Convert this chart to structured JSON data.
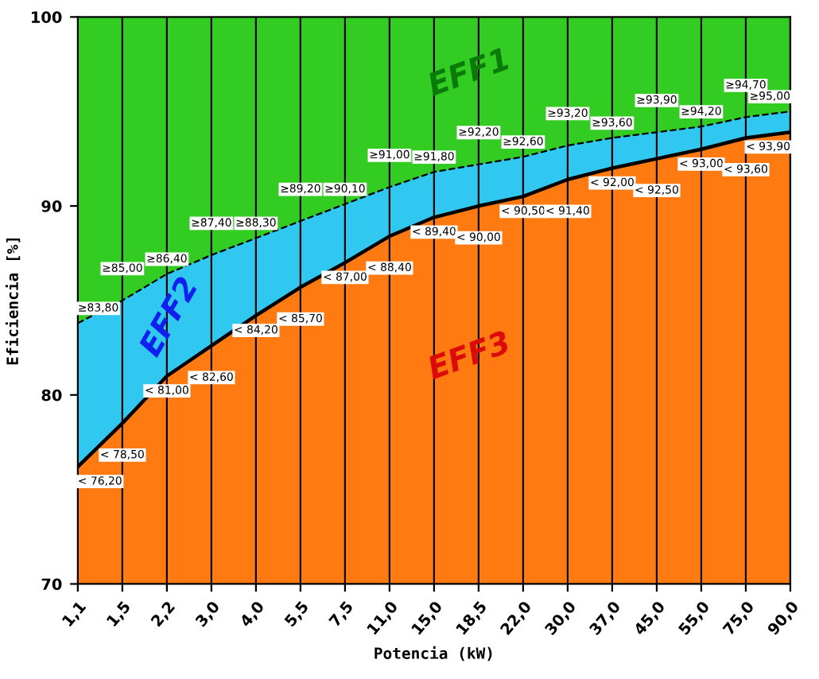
{
  "chart_data": {
    "type": "area",
    "xlabel": "Potencia (kW)",
    "ylabel": "Eficiencia [%]",
    "categories": [
      "1,1",
      "1,5",
      "2,2",
      "3,0",
      "4,0",
      "5,5",
      "7,5",
      "11,0",
      "15,0",
      "18,5",
      "22,0",
      "30,0",
      "37,0",
      "45,0",
      "55,0",
      "75,0",
      "90,0"
    ],
    "ylim": [
      70,
      100
    ],
    "bands": [
      {
        "axis": "y",
        "from": 83.8,
        "to": 100,
        "color": "#33cc22"
      }
    ],
    "yticks": [
      70,
      80,
      90,
      100
    ],
    "grid": "x",
    "series": [
      {
        "color": "#30c8f0",
        "line_style": "dashed",
        "values": [
          83.8,
          85.0,
          86.4,
          87.4,
          88.3,
          89.2,
          90.1,
          91.0,
          91.8,
          92.2,
          92.6,
          93.2,
          93.6,
          93.9,
          94.2,
          94.7,
          95.0
        ],
        "value_labels": [
          "≥83,80",
          "≥85,00",
          "≥86,40",
          "≥87,40",
          "≥88,30",
          "≥89,20",
          "≥90,10",
          "≥91,00",
          "≥91,80",
          "≥92,20",
          "≥92,60",
          "≥93,20",
          "≥93,60",
          "≥93,90",
          "≥94,20",
          "≥94,70",
          "≥95,00"
        ]
      },
      {
        "color": "#ff7a10",
        "line_style": "solid",
        "values": [
          76.2,
          78.5,
          81.0,
          82.6,
          84.2,
          85.7,
          87.0,
          88.4,
          89.4,
          90.0,
          90.5,
          91.4,
          92.0,
          92.5,
          93.0,
          93.6,
          93.9
        ],
        "value_labels": [
          "< 76,20",
          "< 78,50",
          "< 81,00",
          "< 82,60",
          "< 84,20",
          "< 85,70",
          "< 87,00",
          "< 88,40",
          "< 89,40",
          "< 90,00",
          "< 90,50",
          "< 91,40",
          "< 92,00",
          "< 92,50",
          "< 93,00",
          "< 93,60",
          "< 93,90"
        ]
      }
    ],
    "annotations": [
      "EFF1",
      "EFF2",
      "EFF3"
    ]
  }
}
